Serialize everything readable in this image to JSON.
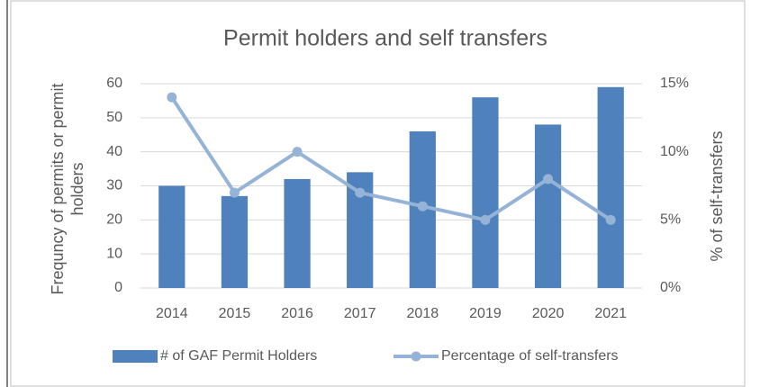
{
  "chart_data": {
    "type": "bar_line",
    "title": "Permit holders and self transfers",
    "y_label": "Frequncy of permits or permit holders",
    "y2_label": "% of self-transfers",
    "categories": [
      "2014",
      "2015",
      "2016",
      "2017",
      "2018",
      "2019",
      "2020",
      "2021"
    ],
    "series": [
      {
        "name": "# of GAF Permit Holders",
        "type": "bar",
        "color": "#4f81bd",
        "values": [
          30,
          27,
          32,
          34,
          46,
          56,
          48,
          59
        ]
      },
      {
        "name": "Percentage of self-transfers",
        "type": "line",
        "axis": "y2",
        "color": "#95b3d7",
        "values": [
          14,
          7,
          10,
          7,
          6,
          5,
          8,
          5
        ]
      }
    ],
    "ylim": [
      0,
      60
    ],
    "yticks": [
      0,
      10,
      20,
      30,
      40,
      50,
      60
    ],
    "y2lim": [
      0,
      15
    ],
    "y2ticks": [
      {
        "value": 0,
        "label": "0%"
      },
      {
        "value": 5,
        "label": "5%"
      },
      {
        "value": 10,
        "label": "10%"
      },
      {
        "value": 15,
        "label": "15%"
      }
    ],
    "grid": true,
    "legend": "bottom"
  }
}
